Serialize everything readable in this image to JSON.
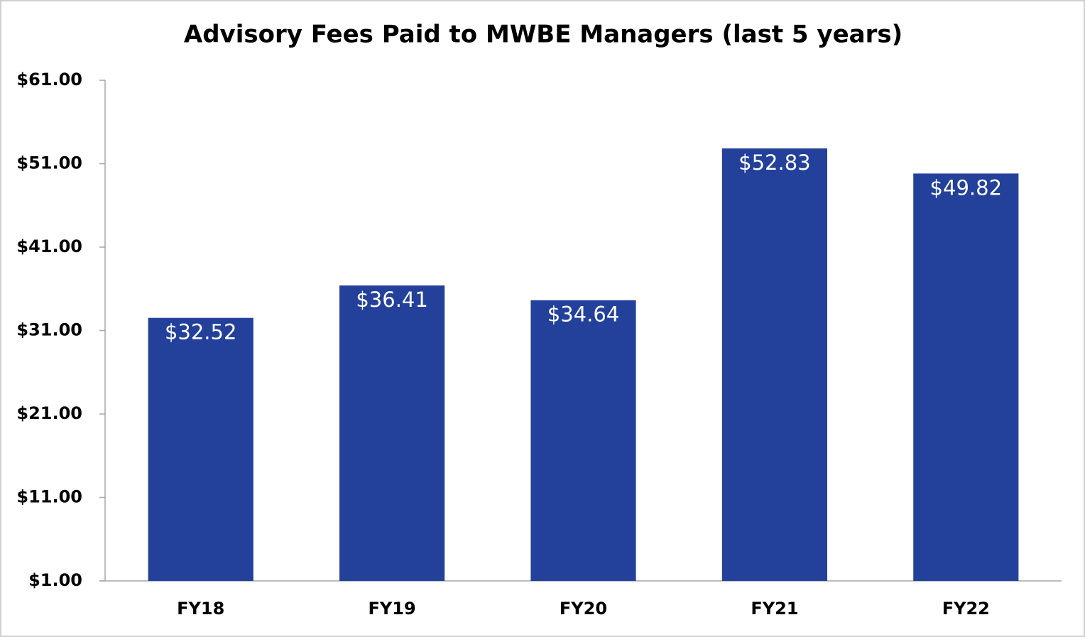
{
  "chart_data": {
    "type": "bar",
    "title": "Advisory Fees Paid to MWBE Managers (last 5 years)",
    "categories": [
      "FY18",
      "FY19",
      "FY20",
      "FY21",
      "FY22"
    ],
    "values": [
      32.52,
      36.41,
      34.64,
      52.83,
      49.82
    ],
    "value_labels": [
      "$32.52",
      "$36.41",
      "$34.64",
      "$52.83",
      "$49.82"
    ],
    "color": "#23409a",
    "ylim": [
      1,
      61
    ],
    "yticks": [
      {
        "value": 1,
        "label": "$1.00"
      },
      {
        "value": 11,
        "label": "$11.00"
      },
      {
        "value": 21,
        "label": "$21.00"
      },
      {
        "value": 31,
        "label": "$31.00"
      },
      {
        "value": 41,
        "label": "$41.00"
      },
      {
        "value": 51,
        "label": "$51.00"
      },
      {
        "value": 61,
        "label": "$61.00"
      }
    ],
    "grid": false
  }
}
